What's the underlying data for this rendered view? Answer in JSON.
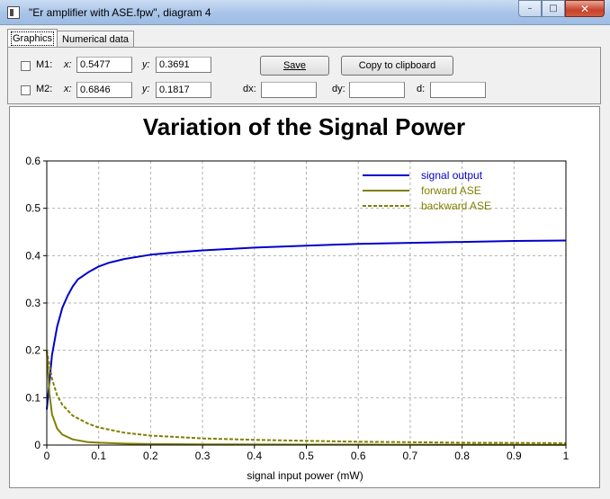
{
  "window": {
    "title": "\"Er amplifier with ASE.fpw\", diagram 4",
    "min_symbol": "–",
    "max_symbol": "□",
    "close_symbol": "✕"
  },
  "tabs": [
    {
      "label": "Graphics",
      "active": true
    },
    {
      "label": "Numerical data",
      "active": false
    }
  ],
  "markers": {
    "m1": {
      "label": "M1:",
      "checked": false,
      "x_label": "x:",
      "x_value": "0.5477",
      "y_label": "y:",
      "y_value": "0.3691"
    },
    "m2": {
      "label": "M2:",
      "checked": false,
      "x_label": "x:",
      "x_value": "0.6846",
      "y_label": "y:",
      "y_value": "0.1817"
    },
    "dx_label": "dx:",
    "dx_value": "",
    "dy_label": "dy:",
    "dy_value": "",
    "d_label": "d:",
    "d_value": ""
  },
  "buttons": {
    "save": "Save",
    "copy": "Copy to clipboard"
  },
  "chart_data": {
    "type": "line",
    "title": "Variation of the Signal Power",
    "xlabel": "signal input power (mW)",
    "ylabel": "",
    "xlim": [
      0,
      1
    ],
    "ylim": [
      0,
      0.6
    ],
    "xticks": [
      "0",
      "0.1",
      "0.2",
      "0.3",
      "0.4",
      "0.5",
      "0.6",
      "0.7",
      "0.8",
      "0.9",
      "1"
    ],
    "yticks": [
      "0",
      "0.1",
      "0.2",
      "0.3",
      "0.4",
      "0.5",
      "0.6"
    ],
    "grid": true,
    "legend_position": "top-right",
    "series": [
      {
        "name": "signal output",
        "color": "#0000cc",
        "style": "solid",
        "points": [
          [
            0,
            0.075
          ],
          [
            0.01,
            0.19
          ],
          [
            0.02,
            0.25
          ],
          [
            0.03,
            0.29
          ],
          [
            0.04,
            0.315
          ],
          [
            0.05,
            0.335
          ],
          [
            0.06,
            0.35
          ],
          [
            0.08,
            0.365
          ],
          [
            0.1,
            0.377
          ],
          [
            0.12,
            0.385
          ],
          [
            0.15,
            0.393
          ],
          [
            0.2,
            0.402
          ],
          [
            0.25,
            0.407
          ],
          [
            0.3,
            0.411
          ],
          [
            0.4,
            0.417
          ],
          [
            0.5,
            0.421
          ],
          [
            0.6,
            0.425
          ],
          [
            0.7,
            0.427
          ],
          [
            0.8,
            0.429
          ],
          [
            0.9,
            0.431
          ],
          [
            1.0,
            0.432
          ]
        ]
      },
      {
        "name": "forward ASE",
        "color": "#808000",
        "style": "solid",
        "points": [
          [
            0,
            0.2
          ],
          [
            0.005,
            0.11
          ],
          [
            0.01,
            0.065
          ],
          [
            0.02,
            0.035
          ],
          [
            0.03,
            0.022
          ],
          [
            0.05,
            0.012
          ],
          [
            0.08,
            0.006
          ],
          [
            0.1,
            0.005
          ],
          [
            0.15,
            0.003
          ],
          [
            0.2,
            0.002
          ],
          [
            0.3,
            0.0015
          ],
          [
            0.5,
            0.001
          ],
          [
            0.7,
            0.0008
          ],
          [
            1.0,
            0.0005
          ]
        ]
      },
      {
        "name": "backward ASE",
        "color": "#808000",
        "style": "dashed",
        "points": [
          [
            0,
            0.2
          ],
          [
            0.005,
            0.17
          ],
          [
            0.01,
            0.14
          ],
          [
            0.02,
            0.105
          ],
          [
            0.03,
            0.085
          ],
          [
            0.05,
            0.062
          ],
          [
            0.08,
            0.045
          ],
          [
            0.1,
            0.037
          ],
          [
            0.15,
            0.026
          ],
          [
            0.2,
            0.02
          ],
          [
            0.3,
            0.014
          ],
          [
            0.4,
            0.011
          ],
          [
            0.5,
            0.009
          ],
          [
            0.6,
            0.007
          ],
          [
            0.7,
            0.006
          ],
          [
            0.8,
            0.005
          ],
          [
            0.9,
            0.0045
          ],
          [
            1.0,
            0.004
          ]
        ]
      }
    ]
  }
}
